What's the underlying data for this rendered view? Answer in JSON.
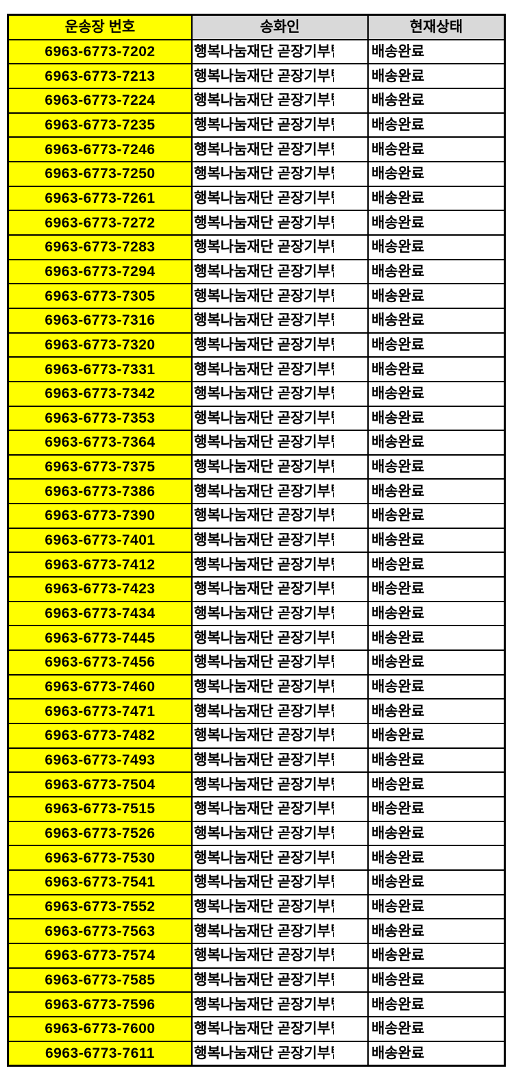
{
  "colors": {
    "highlight_yellow": "#ffff00",
    "header_gray": "#d9d9d9",
    "border_black": "#000000",
    "cell_white": "#ffffff",
    "text_black": "#000000"
  },
  "table": {
    "headers": {
      "tracking": "운송장 번호",
      "sender": "송화인",
      "status": "현재상태"
    },
    "sender_clipped_char": "팀",
    "rows": [
      {
        "tracking": "6963-6773-7202",
        "sender": "행복나눔재단 곧장기부",
        "status": "배송완료"
      },
      {
        "tracking": "6963-6773-7213",
        "sender": "행복나눔재단 곧장기부",
        "status": "배송완료"
      },
      {
        "tracking": "6963-6773-7224",
        "sender": "행복나눔재단 곧장기부",
        "status": "배송완료"
      },
      {
        "tracking": "6963-6773-7235",
        "sender": "행복나눔재단 곧장기부",
        "status": "배송완료"
      },
      {
        "tracking": "6963-6773-7246",
        "sender": "행복나눔재단 곧장기부",
        "status": "배송완료"
      },
      {
        "tracking": "6963-6773-7250",
        "sender": "행복나눔재단 곧장기부",
        "status": "배송완료"
      },
      {
        "tracking": "6963-6773-7261",
        "sender": "행복나눔재단 곧장기부",
        "status": "배송완료"
      },
      {
        "tracking": "6963-6773-7272",
        "sender": "행복나눔재단 곧장기부",
        "status": "배송완료"
      },
      {
        "tracking": "6963-6773-7283",
        "sender": "행복나눔재단 곧장기부",
        "status": "배송완료"
      },
      {
        "tracking": "6963-6773-7294",
        "sender": "행복나눔재단 곧장기부",
        "status": "배송완료"
      },
      {
        "tracking": "6963-6773-7305",
        "sender": "행복나눔재단 곧장기부",
        "status": "배송완료"
      },
      {
        "tracking": "6963-6773-7316",
        "sender": "행복나눔재단 곧장기부",
        "status": "배송완료"
      },
      {
        "tracking": "6963-6773-7320",
        "sender": "행복나눔재단 곧장기부",
        "status": "배송완료"
      },
      {
        "tracking": "6963-6773-7331",
        "sender": "행복나눔재단 곧장기부",
        "status": "배송완료"
      },
      {
        "tracking": "6963-6773-7342",
        "sender": "행복나눔재단 곧장기부",
        "status": "배송완료"
      },
      {
        "tracking": "6963-6773-7353",
        "sender": "행복나눔재단 곧장기부",
        "status": "배송완료"
      },
      {
        "tracking": "6963-6773-7364",
        "sender": "행복나눔재단 곧장기부",
        "status": "배송완료"
      },
      {
        "tracking": "6963-6773-7375",
        "sender": "행복나눔재단 곧장기부",
        "status": "배송완료"
      },
      {
        "tracking": "6963-6773-7386",
        "sender": "행복나눔재단 곧장기부",
        "status": "배송완료"
      },
      {
        "tracking": "6963-6773-7390",
        "sender": "행복나눔재단 곧장기부",
        "status": "배송완료"
      },
      {
        "tracking": "6963-6773-7401",
        "sender": "행복나눔재단 곧장기부",
        "status": "배송완료"
      },
      {
        "tracking": "6963-6773-7412",
        "sender": "행복나눔재단 곧장기부",
        "status": "배송완료"
      },
      {
        "tracking": "6963-6773-7423",
        "sender": "행복나눔재단 곧장기부",
        "status": "배송완료"
      },
      {
        "tracking": "6963-6773-7434",
        "sender": "행복나눔재단 곧장기부",
        "status": "배송완료"
      },
      {
        "tracking": "6963-6773-7445",
        "sender": "행복나눔재단 곧장기부",
        "status": "배송완료"
      },
      {
        "tracking": "6963-6773-7456",
        "sender": "행복나눔재단 곧장기부",
        "status": "배송완료"
      },
      {
        "tracking": "6963-6773-7460",
        "sender": "행복나눔재단 곧장기부",
        "status": "배송완료"
      },
      {
        "tracking": "6963-6773-7471",
        "sender": "행복나눔재단 곧장기부",
        "status": "배송완료"
      },
      {
        "tracking": "6963-6773-7482",
        "sender": "행복나눔재단 곧장기부",
        "status": "배송완료"
      },
      {
        "tracking": "6963-6773-7493",
        "sender": "행복나눔재단 곧장기부",
        "status": "배송완료"
      },
      {
        "tracking": "6963-6773-7504",
        "sender": "행복나눔재단 곧장기부",
        "status": "배송완료"
      },
      {
        "tracking": "6963-6773-7515",
        "sender": "행복나눔재단 곧장기부",
        "status": "배송완료"
      },
      {
        "tracking": "6963-6773-7526",
        "sender": "행복나눔재단 곧장기부",
        "status": "배송완료"
      },
      {
        "tracking": "6963-6773-7530",
        "sender": "행복나눔재단 곧장기부",
        "status": "배송완료"
      },
      {
        "tracking": "6963-6773-7541",
        "sender": "행복나눔재단 곧장기부",
        "status": "배송완료"
      },
      {
        "tracking": "6963-6773-7552",
        "sender": "행복나눔재단 곧장기부",
        "status": "배송완료"
      },
      {
        "tracking": "6963-6773-7563",
        "sender": "행복나눔재단 곧장기부",
        "status": "배송완료"
      },
      {
        "tracking": "6963-6773-7574",
        "sender": "행복나눔재단 곧장기부",
        "status": "배송완료"
      },
      {
        "tracking": "6963-6773-7585",
        "sender": "행복나눔재단 곧장기부",
        "status": "배송완료"
      },
      {
        "tracking": "6963-6773-7596",
        "sender": "행복나눔재단 곧장기부",
        "status": "배송완료"
      },
      {
        "tracking": "6963-6773-7600",
        "sender": "행복나눔재단 곧장기부",
        "status": "배송완료"
      },
      {
        "tracking": "6963-6773-7611",
        "sender": "행복나눔재단 곧장기부",
        "status": "배송완료"
      }
    ]
  }
}
